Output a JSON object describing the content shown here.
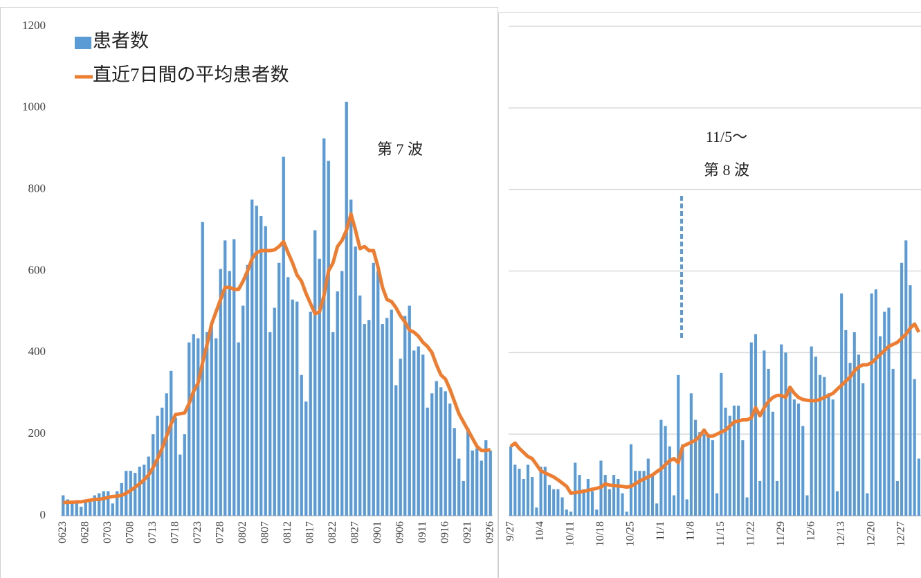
{
  "chart_data": [
    {
      "type": "bar",
      "legend": "upper left",
      "grid": false,
      "show_ytick_labels": true,
      "ylim": [
        0,
        1200
      ],
      "yticks": [
        0,
        200,
        400,
        600,
        800,
        1000,
        1200
      ],
      "annotations": [
        "第 7 波"
      ],
      "categories": [
        "0623",
        null,
        null,
        null,
        null,
        "0628",
        null,
        null,
        null,
        null,
        "0703",
        null,
        null,
        null,
        null,
        "0708",
        null,
        null,
        null,
        null,
        "0713",
        null,
        null,
        null,
        null,
        "0718",
        null,
        null,
        null,
        null,
        "0723",
        null,
        null,
        null,
        null,
        "0728",
        null,
        null,
        null,
        null,
        "0802",
        null,
        null,
        null,
        null,
        "0807",
        null,
        null,
        null,
        null,
        "0812",
        null,
        null,
        null,
        null,
        "0817",
        null,
        null,
        null,
        null,
        "0822",
        null,
        null,
        null,
        null,
        "0827",
        null,
        null,
        null,
        null,
        "0901",
        null,
        null,
        null,
        null,
        "0906",
        null,
        null,
        null,
        null,
        "0911",
        null,
        null,
        null,
        null,
        "0916",
        null,
        null,
        null,
        null,
        "0921",
        null,
        null,
        null,
        null,
        "0926"
      ],
      "series": [
        {
          "name": "患者数",
          "type": "bar",
          "color": "#5b9bd5",
          "values": [
            50,
            40,
            35,
            35,
            22,
            40,
            40,
            50,
            55,
            60,
            60,
            30,
            60,
            80,
            110,
            110,
            105,
            120,
            125,
            145,
            200,
            245,
            265,
            300,
            355,
            240,
            150,
            200,
            425,
            445,
            435,
            720,
            450,
            470,
            435,
            605,
            675,
            600,
            678,
            425,
            515,
            615,
            775,
            760,
            735,
            710,
            450,
            510,
            620,
            880,
            585,
            530,
            525,
            345,
            280,
            500,
            700,
            630,
            925,
            870,
            450,
            550,
            600,
            1015,
            775,
            660,
            540,
            470,
            480,
            620,
            600,
            470,
            485,
            505,
            320,
            385,
            490,
            515,
            405,
            415,
            395,
            265,
            300,
            330,
            315,
            305,
            275,
            215,
            140,
            85,
            215,
            160,
            165,
            135,
            185,
            160
          ]
        },
        {
          "name": "直近7日間の平均患者数",
          "type": "line",
          "color": "#ed7d31",
          "values": [
            32,
            33,
            33,
            34,
            34,
            36,
            38,
            40,
            40,
            42,
            45,
            47,
            48,
            50,
            55,
            62,
            70,
            78,
            88,
            100,
            118,
            140,
            165,
            195,
            225,
            248,
            250,
            252,
            275,
            305,
            325,
            375,
            420,
            470,
            500,
            530,
            560,
            560,
            555,
            555,
            575,
            600,
            630,
            645,
            650,
            650,
            650,
            652,
            660,
            672,
            645,
            620,
            590,
            575,
            545,
            520,
            495,
            500,
            540,
            600,
            620,
            660,
            675,
            700,
            740,
            700,
            655,
            660,
            650,
            650,
            610,
            560,
            530,
            525,
            510,
            490,
            475,
            455,
            450,
            440,
            425,
            415,
            400,
            370,
            345,
            335,
            310,
            280,
            250,
            230,
            210,
            190,
            170,
            160,
            160,
            162
          ]
        }
      ]
    },
    {
      "type": "bar",
      "grid": true,
      "show_ytick_labels": false,
      "ylim": [
        0,
        1200
      ],
      "yticks": [
        0,
        200,
        400,
        600,
        800,
        1000,
        1200
      ],
      "annotations": [
        "11/5～",
        "第 8 波"
      ],
      "categories": [
        "9/27",
        null,
        null,
        null,
        null,
        null,
        null,
        "10/4",
        null,
        null,
        null,
        null,
        null,
        null,
        "10/11",
        null,
        null,
        null,
        null,
        null,
        null,
        "10/18",
        null,
        null,
        null,
        null,
        null,
        null,
        "10/25",
        null,
        null,
        null,
        null,
        null,
        null,
        "11/1",
        null,
        null,
        null,
        null,
        null,
        null,
        "11/8",
        null,
        null,
        null,
        null,
        null,
        null,
        "11/15",
        null,
        null,
        null,
        null,
        null,
        null,
        "11/22",
        null,
        null,
        null,
        null,
        null,
        null,
        "11/29",
        null,
        null,
        null,
        null,
        null,
        null,
        "12/6",
        null,
        null,
        null,
        null,
        null,
        null,
        "12/13",
        null,
        null,
        null,
        null,
        null,
        null,
        "12/20",
        null,
        null,
        null,
        null,
        null,
        null,
        "12/27",
        null,
        null,
        null,
        null
      ],
      "series": [
        {
          "type": "bar",
          "color": "#5b9bd5",
          "values": [
            170,
            125,
            115,
            90,
            125,
            95,
            20,
            120,
            120,
            75,
            65,
            65,
            45,
            15,
            10,
            130,
            100,
            65,
            90,
            60,
            15,
            135,
            100,
            65,
            100,
            90,
            55,
            10,
            175,
            110,
            110,
            110,
            140,
            100,
            30,
            235,
            220,
            170,
            50,
            345,
            175,
            40,
            300,
            235,
            205,
            200,
            200,
            185,
            55,
            350,
            265,
            245,
            270,
            270,
            185,
            45,
            425,
            445,
            85,
            405,
            360,
            255,
            85,
            420,
            400,
            305,
            285,
            275,
            220,
            50,
            415,
            390,
            345,
            340,
            300,
            285,
            60,
            545,
            455,
            375,
            450,
            395,
            325,
            55,
            545,
            555,
            440,
            500,
            510,
            360,
            85,
            620,
            675,
            565,
            335,
            140
          ]
        },
        {
          "type": "line",
          "color": "#ed7d31",
          "values": [
            170,
            178,
            165,
            155,
            145,
            140,
            125,
            110,
            105,
            100,
            95,
            88,
            80,
            72,
            55,
            57,
            58,
            60,
            62,
            65,
            67,
            70,
            78,
            75,
            74,
            73,
            72,
            70,
            72,
            78,
            85,
            90,
            95,
            100,
            108,
            115,
            125,
            135,
            140,
            130,
            170,
            175,
            180,
            185,
            195,
            210,
            195,
            195,
            200,
            205,
            210,
            220,
            230,
            232,
            235,
            235,
            240,
            265,
            245,
            265,
            280,
            290,
            295,
            295,
            290,
            315,
            300,
            290,
            285,
            283,
            282,
            282,
            285,
            290,
            295,
            300,
            310,
            320,
            330,
            340,
            355,
            365,
            370,
            370,
            375,
            385,
            395,
            405,
            415,
            420,
            425,
            435,
            445,
            460,
            470,
            450
          ]
        }
      ]
    }
  ]
}
